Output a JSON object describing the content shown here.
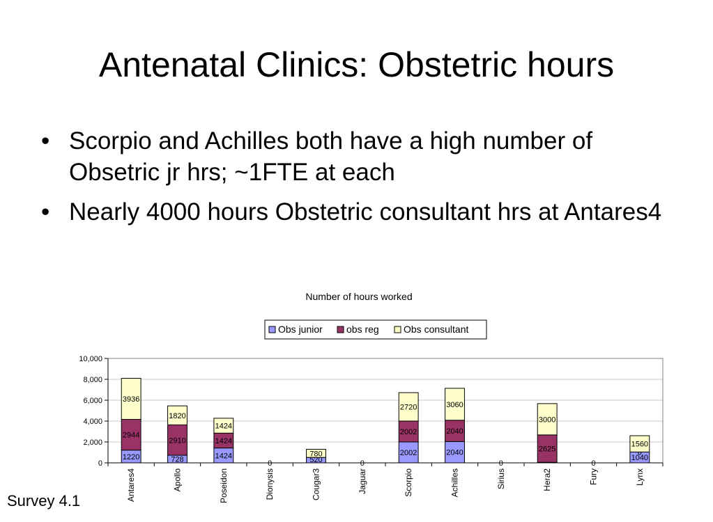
{
  "slide": {
    "title": "Antenatal Clinics: Obstetric hours",
    "bullets": [
      "Scorpio and Achilles both have a high number of Obsetric jr hrs; ~1FTE at each",
      "Nearly 4000 hours Obstetric consultant hrs at Antares4"
    ],
    "footer": "Survey 4.1"
  },
  "chart_data": {
    "type": "bar",
    "stacked": true,
    "title": "Number of hours worked",
    "xlabel": "",
    "ylabel": "",
    "ylim": [
      0,
      10000
    ],
    "yticks": [
      "0",
      "2,000",
      "4,000",
      "6,000",
      "8,000",
      "10,000"
    ],
    "grid": true,
    "legend": "top",
    "categories": [
      "Antares4",
      "Apollo",
      "Poseidon",
      "Dionysis",
      "Cougar3",
      "Jaguar",
      "Scorpio",
      "Achilles",
      "Sirius",
      "Hera2",
      "Fury",
      "Lynx"
    ],
    "series": [
      {
        "name": "Obs junior",
        "color": "#9999ff",
        "values": [
          1220,
          728,
          1424,
          0,
          520,
          0,
          2002,
          2040,
          0,
          50,
          0,
          1040
        ]
      },
      {
        "name": "obs reg",
        "color": "#993366",
        "values": [
          2944,
          2910,
          1424,
          0,
          0,
          0,
          2002,
          2040,
          0,
          2625,
          0,
          0
        ]
      },
      {
        "name": "Obs consultant",
        "color": "#ffffcc",
        "values": [
          3936,
          1820,
          1424,
          0,
          780,
          0,
          2720,
          3060,
          0,
          3000,
          0,
          1560
        ]
      }
    ],
    "labels": [
      [
        "1220",
        "728",
        "1424",
        "0",
        "520",
        "0",
        "2002",
        "2040",
        "0",
        "50",
        "0",
        "1040"
      ],
      [
        "2944",
        "2910",
        "1424",
        "",
        "",
        "",
        "2002",
        "2040",
        "",
        "2625",
        "",
        "0"
      ],
      [
        "3936",
        "1820",
        "1424",
        "",
        "780",
        "",
        "2720",
        "3060",
        "",
        "3000",
        "",
        "1560"
      ]
    ]
  }
}
